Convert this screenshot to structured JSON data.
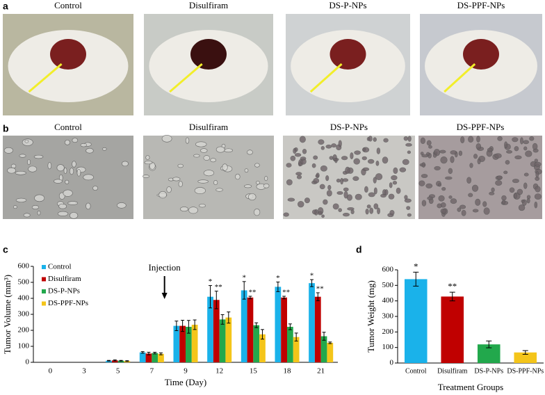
{
  "panel_a": {
    "letter": "a",
    "labels": [
      "Control",
      "Disulfiram",
      "DS-P-NPs",
      "DS-PPF-NPs"
    ]
  },
  "panel_b": {
    "letter": "b",
    "labels": [
      "Control",
      "Disulfiram",
      "DS-P-NPs",
      "DS-PPF-NPs"
    ]
  },
  "chart_data": [
    {
      "type": "grouped_bar",
      "panel_label": "c",
      "xlabel": "Time (Day)",
      "ylabel": "Tumor Volume (mm³)",
      "categories": [
        "0",
        "3",
        "5",
        "7",
        "9",
        "12",
        "15",
        "18",
        "21"
      ],
      "ylim": [
        0,
        600
      ],
      "yticks": [
        0,
        100,
        200,
        300,
        400,
        500,
        600
      ],
      "legend": "upper left",
      "annotation": "Injection",
      "series": [
        {
          "name": "Control",
          "color": "#1ab2ea",
          "values": [
            0,
            0,
            10,
            62,
            228,
            410,
            450,
            472,
            495
          ],
          "errors": [
            0,
            0,
            2,
            5,
            30,
            70,
            55,
            30,
            22
          ],
          "significance": [
            null,
            null,
            null,
            null,
            null,
            "*",
            "*",
            "*",
            "*"
          ]
        },
        {
          "name": "Disulfiram",
          "color": "#c00000",
          "values": [
            0,
            0,
            12,
            55,
            228,
            390,
            405,
            405,
            410
          ],
          "errors": [
            0,
            0,
            3,
            8,
            35,
            55,
            8,
            8,
            25
          ],
          "significance": [
            null,
            null,
            null,
            null,
            null,
            "**",
            "**",
            "**",
            "**"
          ]
        },
        {
          "name": "DS-P-NPs",
          "color": "#22a84c",
          "values": [
            0,
            0,
            10,
            58,
            222,
            268,
            232,
            222,
            163
          ],
          "errors": [
            0,
            0,
            2,
            5,
            40,
            30,
            15,
            18,
            25
          ],
          "significance": [
            null,
            null,
            null,
            null,
            null,
            null,
            null,
            null,
            null
          ]
        },
        {
          "name": "DS-PPF-NPs",
          "color": "#f4c51a",
          "values": [
            0,
            0,
            8,
            53,
            235,
            280,
            175,
            158,
            122
          ],
          "errors": [
            0,
            0,
            2,
            6,
            30,
            35,
            30,
            25,
            5
          ],
          "significance": [
            null,
            null,
            null,
            null,
            null,
            null,
            null,
            null,
            null
          ]
        }
      ]
    },
    {
      "type": "bar",
      "panel_label": "d",
      "xlabel": "Treatment Groups",
      "ylabel": "Tumor Weight (mg)",
      "categories": [
        "Control",
        "Disulfiram",
        "DS-P-NPs",
        "DS-PPF-NPs"
      ],
      "values": [
        540,
        428,
        120,
        68
      ],
      "errors": [
        45,
        28,
        22,
        12
      ],
      "significance": [
        "*",
        "**",
        null,
        null
      ],
      "colors": [
        "#1ab2ea",
        "#c00000",
        "#22a84c",
        "#f4c51a"
      ],
      "ylim": [
        0,
        600
      ],
      "yticks": [
        0,
        100,
        200,
        300,
        400,
        500,
        600
      ]
    }
  ]
}
